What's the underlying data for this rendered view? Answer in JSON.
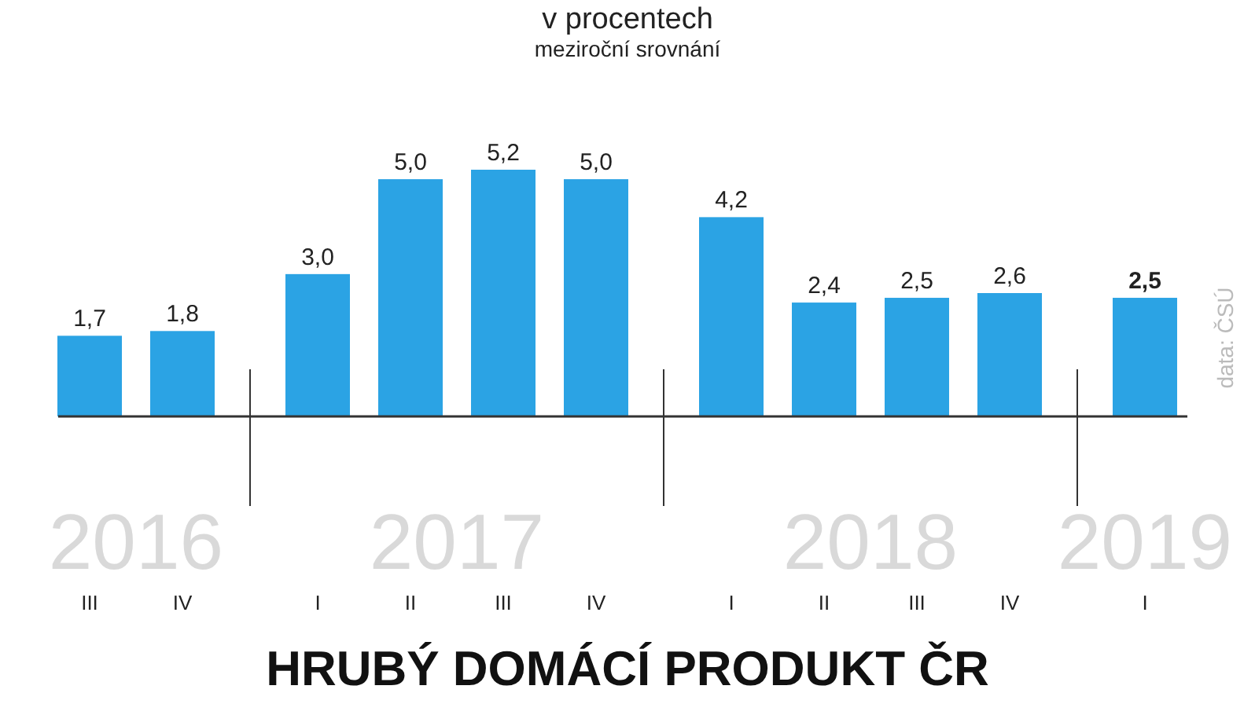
{
  "chart_data": {
    "type": "bar",
    "title": "HRUBÝ DOMÁCÍ PRODUKT ČR",
    "subtitle": "v procentech",
    "categories": [
      "III",
      "IV",
      null,
      "I",
      "II",
      "III",
      "IV",
      null,
      "I",
      "II",
      "III",
      "IV",
      null,
      "I"
    ],
    "values": [
      1.7,
      1.8,
      null,
      3.0,
      5.0,
      5.2,
      5.0,
      null,
      4.2,
      2.4,
      2.5,
      2.6,
      null,
      2.5
    ],
    "value_labels": [
      "1,7",
      "1,8",
      null,
      "3,0",
      "5,0",
      "5,2",
      "5,0",
      null,
      "4,2",
      "2,4",
      "2,5",
      "2,6",
      null,
      "2,5"
    ],
    "color": "#2ba3e4",
    "annotations": [
      "meziroční srovnání",
      "2016",
      "2017",
      "2018",
      "2019",
      "data: ČSÚ"
    ]
  }
}
